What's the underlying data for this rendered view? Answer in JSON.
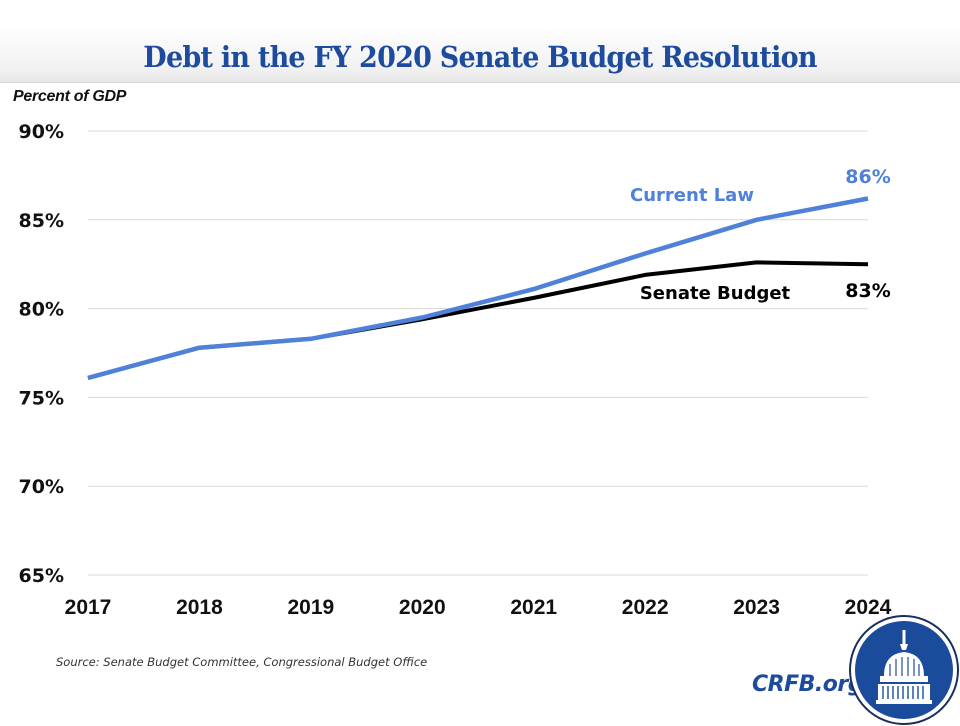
{
  "header": {
    "title": "Debt in the FY 2020 Senate Budget Resolution"
  },
  "footer": {
    "source": "Source: Senate Budget Committee, Congressional Budget Office",
    "brand": "CRFB.org",
    "logo_icon": "capitol-dome-icon"
  },
  "colors": {
    "title": "#1d4b9d",
    "current_law": "#4f81d9",
    "senate_budget": "#000000",
    "grid": "#d9d9d9"
  },
  "chart_data": {
    "type": "line",
    "title": "Debt in the FY 2020 Senate Budget Resolution",
    "ylabel": "Percent of GDP",
    "xlabel": "",
    "x": [
      "2017",
      "2018",
      "2019",
      "2020",
      "2021",
      "2022",
      "2023",
      "2024"
    ],
    "ylim": [
      65,
      90
    ],
    "yticks": [
      90,
      85,
      80,
      75,
      70,
      65
    ],
    "ytick_labels": [
      "90%",
      "85%",
      "80%",
      "75%",
      "70%",
      "65%"
    ],
    "grid": true,
    "legend": "none (direct labels)",
    "series": [
      {
        "name": "Current Law",
        "color": "#4f81d9",
        "values": [
          76.1,
          77.8,
          78.3,
          79.5,
          81.1,
          83.1,
          85.0,
          86.2
        ],
        "end_label": "86%"
      },
      {
        "name": "Senate Budget",
        "color": "#000000",
        "values": [
          76.1,
          77.8,
          78.3,
          79.4,
          80.6,
          81.9,
          82.6,
          82.5
        ],
        "end_label": "83%"
      }
    ]
  }
}
